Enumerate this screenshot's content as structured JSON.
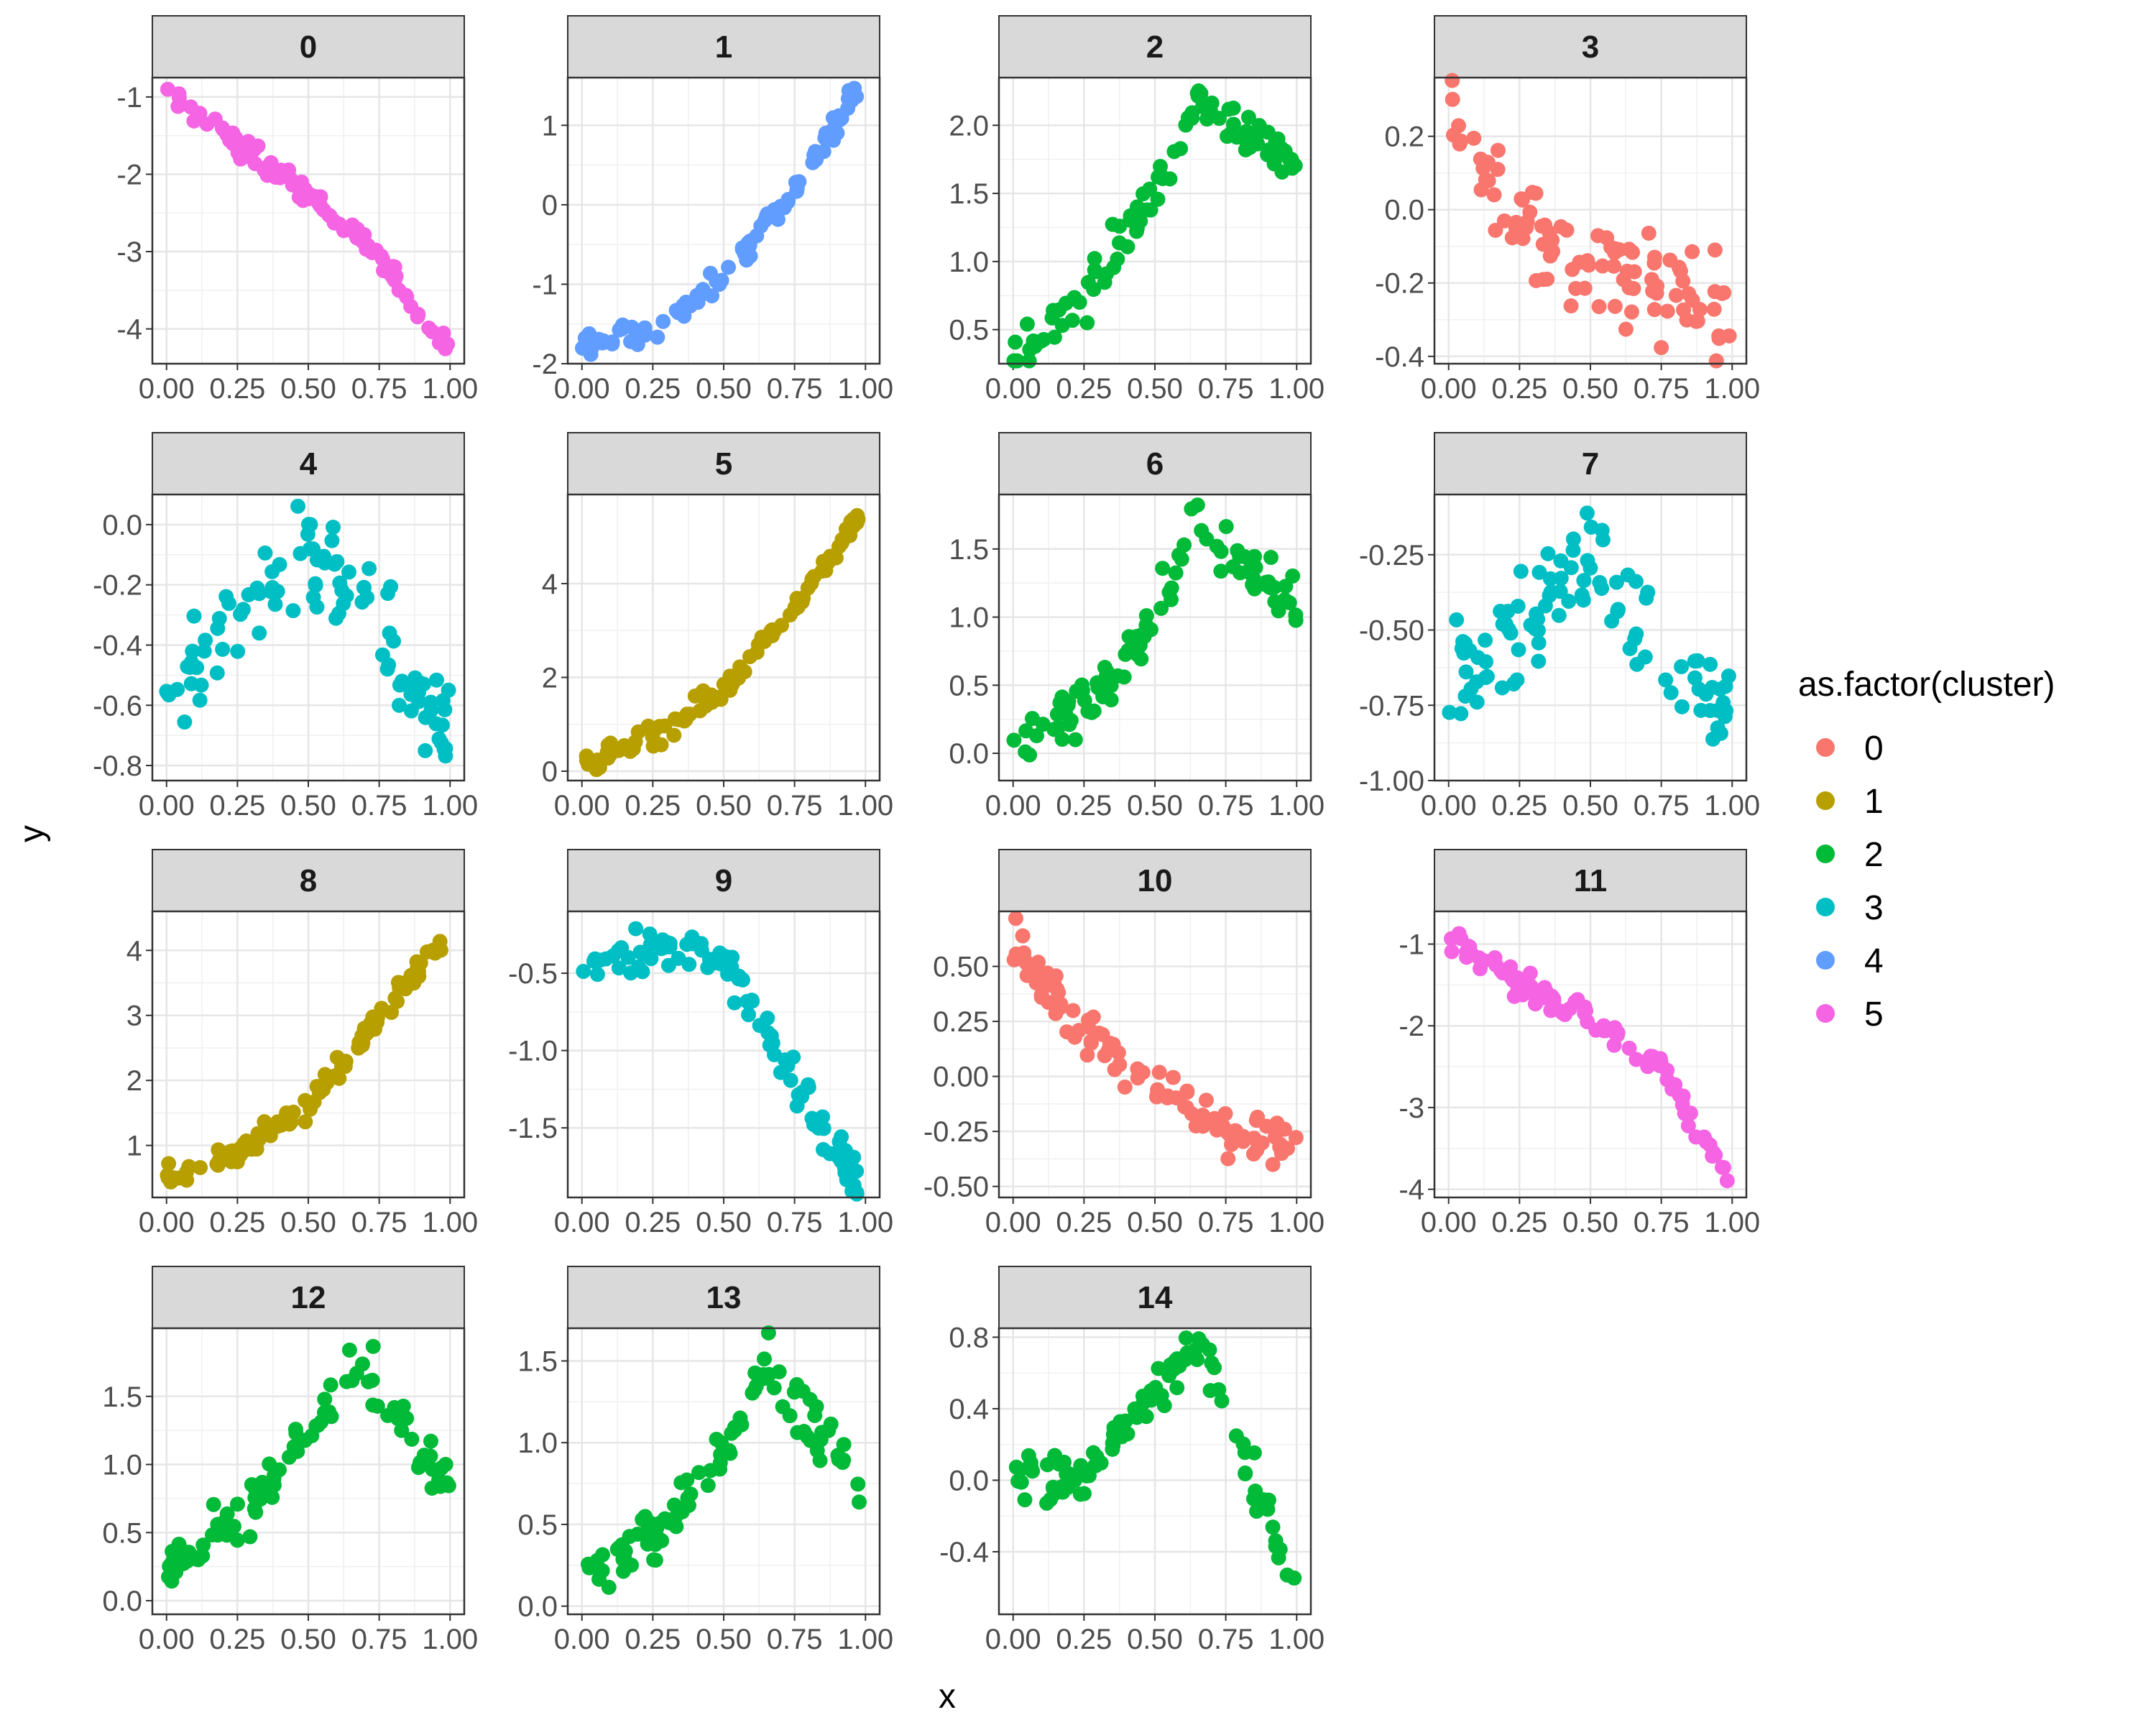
{
  "chart_data": {
    "type": "scatter",
    "facet_by": "cluster_id",
    "xlabel": "x",
    "ylabel": "y",
    "xlim": [
      0,
      1
    ],
    "x_ticks": [
      "0.00",
      "0.25",
      "0.50",
      "0.75",
      "1.00"
    ],
    "grid": true,
    "legend": {
      "title": "as.factor(cluster)",
      "placement": "right",
      "entries": [
        {
          "label": "0",
          "color": "#F8766D"
        },
        {
          "label": "1",
          "color": "#B79F00"
        },
        {
          "label": "2",
          "color": "#00BA38"
        },
        {
          "label": "3",
          "color": "#00BFC4"
        },
        {
          "label": "4",
          "color": "#619CFF"
        },
        {
          "label": "5",
          "color": "#F564E3"
        }
      ]
    },
    "panels": [
      {
        "label": "0",
        "cluster": 5,
        "shape": "quadDown",
        "y_ticks": [
          -1,
          -2,
          -3,
          -4
        ],
        "tick_labels": [
          "-1",
          "-2",
          "-3",
          "-4"
        ],
        "ylim": [
          -4.45,
          -0.75
        ],
        "points": [
          [
            0.0,
            -0.95
          ],
          [
            0.25,
            -1.6
          ],
          [
            0.5,
            -2.3
          ],
          [
            0.75,
            -3.0
          ],
          [
            1.0,
            -4.35
          ]
        ]
      },
      {
        "label": "1",
        "cluster": 4,
        "shape": "quadUp",
        "y_ticks": [
          -2,
          -1,
          0,
          1
        ],
        "tick_labels": [
          "-2",
          "-1",
          "0",
          "1"
        ],
        "ylim": [
          -2.0,
          1.6
        ],
        "points": [
          [
            0.0,
            -1.75
          ],
          [
            0.25,
            -1.6
          ],
          [
            0.5,
            -0.9
          ],
          [
            0.75,
            0.2
          ],
          [
            0.97,
            1.45
          ]
        ]
      },
      {
        "label": "2",
        "cluster": 2,
        "shape": "riseFall",
        "y_ticks": [
          0.5,
          1.0,
          1.5,
          2.0
        ],
        "tick_labels": [
          "0.5",
          "1.0",
          "1.5",
          "2.0"
        ],
        "ylim": [
          0.25,
          2.35
        ],
        "points": [
          [
            0.0,
            0.35
          ],
          [
            0.25,
            0.7
          ],
          [
            0.5,
            1.5
          ],
          [
            0.65,
            2.2
          ],
          [
            1.0,
            1.7
          ]
        ]
      },
      {
        "label": "3",
        "cluster": 0,
        "shape": "decayNoisy",
        "y_ticks": [
          -0.4,
          -0.2,
          0.0,
          0.2
        ],
        "tick_labels": [
          "-0.4",
          "-0.2",
          "0.0",
          "0.2"
        ],
        "ylim": [
          -0.42,
          0.36
        ],
        "points": [
          [
            0.0,
            0.25
          ],
          [
            0.25,
            -0.05
          ],
          [
            0.5,
            -0.15
          ],
          [
            0.75,
            -0.2
          ],
          [
            1.0,
            -0.25
          ]
        ]
      },
      {
        "label": "4",
        "cluster": 3,
        "shape": "humpMid",
        "y_ticks": [
          -0.8,
          -0.6,
          -0.4,
          -0.2,
          0.0
        ],
        "tick_labels": [
          "-0.8",
          "-0.6",
          "-0.4",
          "-0.2",
          "0.0"
        ],
        "ylim": [
          -0.85,
          0.1
        ],
        "points": [
          [
            0.0,
            -0.6
          ],
          [
            0.25,
            -0.3
          ],
          [
            0.5,
            -0.1
          ],
          [
            0.75,
            -0.35
          ],
          [
            1.0,
            -0.7
          ]
        ]
      },
      {
        "label": "5",
        "cluster": 1,
        "shape": "quadUp",
        "y_ticks": [
          0,
          2,
          4
        ],
        "tick_labels": [
          "0",
          "2",
          "4"
        ],
        "ylim": [
          -0.2,
          5.9
        ],
        "points": [
          [
            0.0,
            0.1
          ],
          [
            0.25,
            0.7
          ],
          [
            0.5,
            1.7
          ],
          [
            0.75,
            3.5
          ],
          [
            1.0,
            5.6
          ]
        ]
      },
      {
        "label": "6",
        "cluster": 2,
        "shape": "riseFall",
        "y_ticks": [
          0.0,
          0.5,
          1.0,
          1.5
        ],
        "tick_labels": [
          "0.0",
          "0.5",
          "1.0",
          "1.5"
        ],
        "ylim": [
          -0.2,
          1.9
        ],
        "points": [
          [
            0.0,
            0.05
          ],
          [
            0.25,
            0.3
          ],
          [
            0.5,
            1.0
          ],
          [
            0.65,
            1.7
          ],
          [
            1.0,
            1.1
          ]
        ]
      },
      {
        "label": "7",
        "cluster": 3,
        "shape": "humpMid",
        "y_ticks": [
          -1.0,
          -0.75,
          -0.5,
          -0.25
        ],
        "tick_labels": [
          "-1.00",
          "-0.75",
          "-0.50",
          "-0.25"
        ],
        "ylim": [
          -1.0,
          -0.05
        ],
        "points": [
          [
            0.0,
            -0.7
          ],
          [
            0.25,
            -0.5
          ],
          [
            0.5,
            -0.25
          ],
          [
            0.75,
            -0.55
          ],
          [
            1.0,
            -0.8
          ]
        ]
      },
      {
        "label": "8",
        "cluster": 1,
        "shape": "quadUp",
        "y_ticks": [
          1,
          2,
          3,
          4
        ],
        "tick_labels": [
          "1",
          "2",
          "3",
          "4"
        ],
        "ylim": [
          0.2,
          4.6
        ],
        "points": [
          [
            0.0,
            0.55
          ],
          [
            0.25,
            0.9
          ],
          [
            0.5,
            1.6
          ],
          [
            0.75,
            3.0
          ],
          [
            1.0,
            4.3
          ]
        ]
      },
      {
        "label": "9",
        "cluster": 3,
        "shape": "humpEarly",
        "y_ticks": [
          -1.5,
          -1.0,
          -0.5
        ],
        "tick_labels": [
          "-1.5",
          "-1.0",
          "-0.5"
        ],
        "ylim": [
          -1.95,
          -0.1
        ],
        "points": [
          [
            0.0,
            -0.5
          ],
          [
            0.3,
            -0.3
          ],
          [
            0.5,
            -0.4
          ],
          [
            0.75,
            -1.2
          ],
          [
            0.97,
            -1.85
          ]
        ]
      },
      {
        "label": "10",
        "cluster": 0,
        "shape": "decayLinear",
        "y_ticks": [
          -0.5,
          -0.25,
          0.0,
          0.25,
          0.5
        ],
        "tick_labels": [
          "-0.50",
          "-0.25",
          "0.00",
          "0.25",
          "0.50"
        ],
        "ylim": [
          -0.55,
          0.75
        ],
        "points": [
          [
            0.0,
            0.6
          ],
          [
            0.25,
            0.2
          ],
          [
            0.5,
            -0.05
          ],
          [
            0.75,
            -0.25
          ],
          [
            1.0,
            -0.3
          ]
        ]
      },
      {
        "label": "11",
        "cluster": 5,
        "shape": "quadDown",
        "y_ticks": [
          -1,
          -2,
          -3,
          -4
        ],
        "tick_labels": [
          "-1",
          "-2",
          "-3",
          "-4"
        ],
        "ylim": [
          -4.1,
          -0.6
        ],
        "points": [
          [
            0.0,
            -0.9
          ],
          [
            0.25,
            -1.5
          ],
          [
            0.5,
            -1.9
          ],
          [
            0.75,
            -2.5
          ],
          [
            1.0,
            -4.0
          ]
        ]
      },
      {
        "label": "12",
        "cluster": 2,
        "shape": "riseFall",
        "y_ticks": [
          0.0,
          0.5,
          1.0,
          1.5
        ],
        "tick_labels": [
          "0.0",
          "0.5",
          "1.0",
          "1.5"
        ],
        "ylim": [
          -0.1,
          2.0
        ],
        "points": [
          [
            0.0,
            0.2
          ],
          [
            0.25,
            0.6
          ],
          [
            0.5,
            1.2
          ],
          [
            0.68,
            1.75
          ],
          [
            1.0,
            0.8
          ]
        ]
      },
      {
        "label": "13",
        "cluster": 2,
        "shape": "riseFall",
        "y_ticks": [
          0.0,
          0.5,
          1.0,
          1.5
        ],
        "tick_labels": [
          "0.0",
          "0.5",
          "1.0",
          "1.5"
        ],
        "ylim": [
          -0.05,
          1.7
        ],
        "points": [
          [
            0.0,
            0.15
          ],
          [
            0.25,
            0.45
          ],
          [
            0.5,
            1.0
          ],
          [
            0.65,
            1.5
          ],
          [
            1.0,
            0.7
          ]
        ]
      },
      {
        "label": "14",
        "cluster": 2,
        "shape": "riseFall",
        "y_ticks": [
          -0.4,
          0.0,
          0.4,
          0.8
        ],
        "tick_labels": [
          "-0.4",
          "0.0",
          "0.4",
          "0.8"
        ],
        "ylim": [
          -0.75,
          0.85
        ],
        "points": [
          [
            0.0,
            0.0
          ],
          [
            0.25,
            0.0
          ],
          [
            0.5,
            0.5
          ],
          [
            0.65,
            0.75
          ],
          [
            1.0,
            -0.6
          ]
        ]
      }
    ]
  }
}
